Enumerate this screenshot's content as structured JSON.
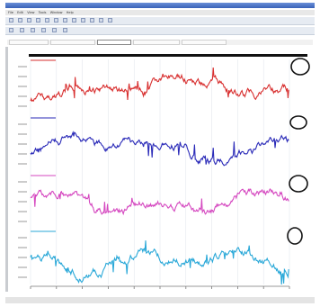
{
  "window": {
    "title": ""
  },
  "menu": {
    "items": [
      "File",
      "Edit",
      "View",
      "Tools",
      "Window",
      "Help"
    ]
  },
  "toolbar": {
    "row1_buttons": [
      "new-icon",
      "open-icon",
      "save-icon",
      "cut-icon",
      "copy-icon",
      "paste-icon",
      "undo-icon",
      "redo-icon",
      "zoom-in-icon",
      "zoom-out-icon",
      "print-icon",
      "help-icon"
    ],
    "row2_buttons": [
      "select-icon",
      "move-icon",
      "marker-icon",
      "ruler-icon",
      "grid-icon",
      "settings-icon"
    ]
  },
  "tabs": [
    {
      "label": ""
    },
    {
      "label": ""
    },
    {
      "label": ""
    },
    {
      "label": ""
    },
    {
      "label": ""
    }
  ],
  "tracks": [
    {
      "label": "",
      "color": "#d83030"
    },
    {
      "label": "",
      "color": "#2a2ab8"
    },
    {
      "label": "",
      "color": "#d548c0"
    },
    {
      "label": "",
      "color": "#2aa8d8"
    }
  ],
  "annotation_color": "#111111",
  "status": {
    "text1": "",
    "text2": "",
    "text3": ""
  }
}
